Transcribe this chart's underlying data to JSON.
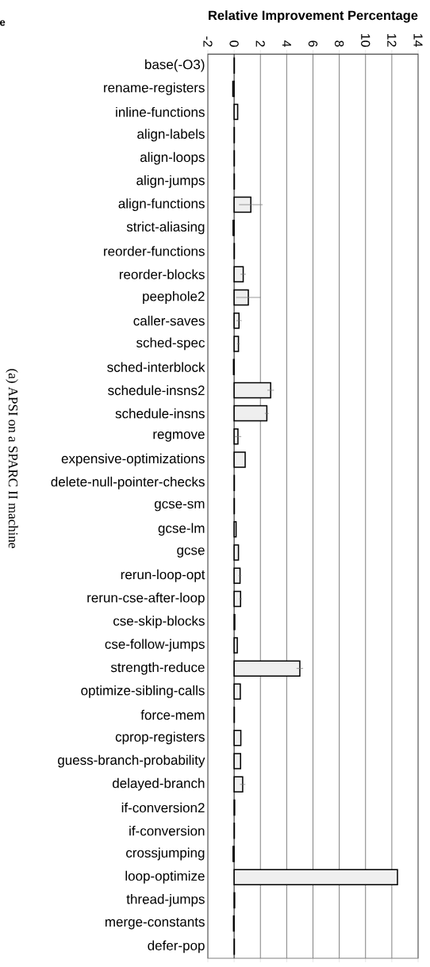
{
  "chart_data": {
    "type": "bar",
    "orientation": "horizontal",
    "xlabel": "Relative Improvement Percentage",
    "annotations": [
      "e",
      "(a) APSI on a SPARC II machine"
    ],
    "categories": [
      "base(-O3)",
      "rename-registers",
      "inline-functions",
      "align-labels",
      "align-loops",
      "align-jumps",
      "align-functions",
      "strict-aliasing",
      "reorder-functions",
      "reorder-blocks",
      "peephole2",
      "caller-saves",
      "sched-spec",
      "sched-interblock",
      "schedule-insns2",
      "schedule-insns",
      "regmove",
      "expensive-optimizations",
      "delete-null-pointer-checks",
      "gcse-sm",
      "gcse-lm",
      "gcse",
      "rerun-loop-opt",
      "rerun-cse-after-loop",
      "cse-skip-blocks",
      "cse-follow-jumps",
      "strength-reduce",
      "optimize-sibling-calls",
      "force-mem",
      "cprop-registers",
      "guess-branch-probability",
      "delayed-branch",
      "if-conversion2",
      "if-conversion",
      "crossjumping",
      "loop-optimize",
      "thread-jumps",
      "merge-constants",
      "defer-pop"
    ],
    "values": [
      0.02,
      -0.1,
      0.27,
      0.02,
      0.02,
      0.02,
      1.27,
      -0.08,
      0.02,
      0.69,
      1.08,
      0.37,
      0.33,
      -0.05,
      2.78,
      2.49,
      0.29,
      0.84,
      0.02,
      0.02,
      0.15,
      0.33,
      0.45,
      0.49,
      0.05,
      0.24,
      5.0,
      0.47,
      0.02,
      0.51,
      0.49,
      0.65,
      0.04,
      0.02,
      -0.08,
      12.43,
      0.04,
      -0.05,
      0.02
    ],
    "errors": [
      null,
      null,
      null,
      null,
      null,
      null,
      0.9,
      null,
      null,
      0.2,
      0.93,
      0.2,
      0.1,
      null,
      0.25,
      0.15,
      0.25,
      null,
      null,
      null,
      null,
      null,
      0.1,
      0.1,
      null,
      null,
      0.25,
      null,
      null,
      null,
      null,
      0.2,
      null,
      null,
      null,
      null,
      null,
      null,
      null
    ],
    "color": "#efefef",
    "xlim": [
      -2,
      14
    ],
    "xticks": [
      -2,
      0,
      2,
      4,
      6,
      8,
      10,
      12,
      14
    ],
    "grid": "x"
  }
}
